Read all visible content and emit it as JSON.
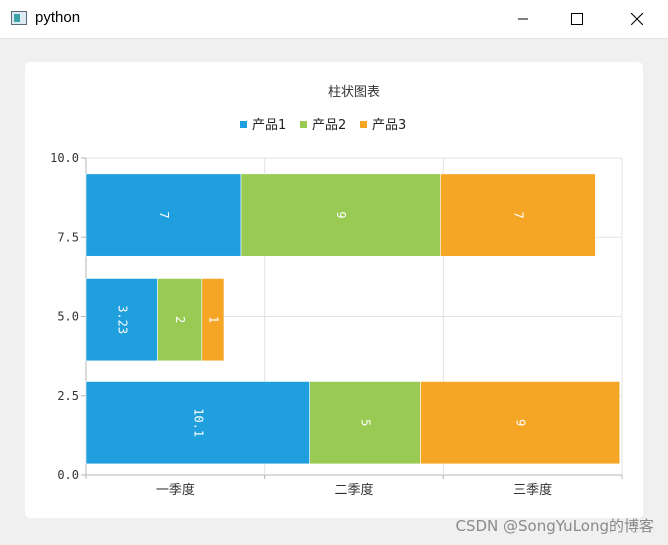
{
  "window": {
    "title": "python",
    "icon": "app-window-icon",
    "controls": [
      "minimize-icon",
      "maximize-icon",
      "close-icon"
    ]
  },
  "chart_data": {
    "type": "bar",
    "stacked": true,
    "orientation": "horizontal-stack",
    "title": "柱状图表",
    "categories": [
      "一季度",
      "二季度",
      "三季度"
    ],
    "row_centers": [
      1.65,
      4.9,
      8.2
    ],
    "row_height": 2.6,
    "series": [
      {
        "name": "产品1",
        "color": "#209fdf",
        "values": [
          10.1,
          3.23,
          7
        ]
      },
      {
        "name": "产品2",
        "color": "#99ca53",
        "values": [
          5,
          2,
          9
        ]
      },
      {
        "name": "产品3",
        "color": "#f6a625",
        "values": [
          9,
          1,
          7
        ]
      }
    ],
    "value_labels": [
      [
        "10.1",
        "3.23",
        "7"
      ],
      [
        "5",
        "2",
        "9"
      ],
      [
        "9",
        "1",
        "7"
      ]
    ],
    "xlim": [
      0,
      24.2
    ],
    "ylim": [
      0,
      10
    ],
    "yticks": [
      "0.0",
      "2.5",
      "5.0",
      "7.5",
      "10.0"
    ],
    "grid": true,
    "legend": "top"
  },
  "watermark": "CSDN @SongYuLong的博客"
}
